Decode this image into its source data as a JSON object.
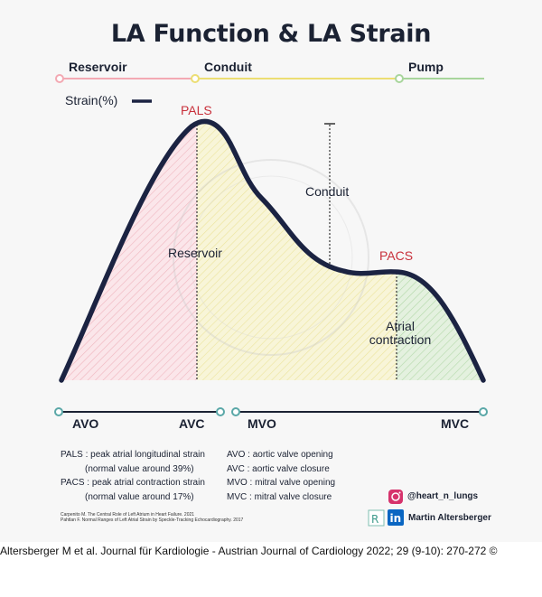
{
  "title": "LA Function & LA Strain",
  "phases": {
    "reservoir": "Reservoir",
    "conduit": "Conduit",
    "pump": "Pump"
  },
  "strain_legend": "Strain(%)",
  "labels": {
    "pals": "PALS",
    "pacs": "PACS",
    "reservoir": "Reservoir",
    "conduit": "Conduit",
    "atrial_line1": "Atrial",
    "atrial_line2": "contraction"
  },
  "timeline": {
    "avo": "AVO",
    "avc": "AVC",
    "mvo": "MVO",
    "mvc": "MVC"
  },
  "definitions_left": [
    {
      "abbr": "PALS :",
      "text": "peak atrial longitudinal strain"
    },
    {
      "abbr": "",
      "text": "(normal value around 39%)"
    },
    {
      "abbr": "PACS :",
      "text": "peak atrial contraction strain"
    },
    {
      "abbr": "",
      "text": "(normal value around 17%)"
    }
  ],
  "definitions_right": [
    {
      "abbr": "AVO :",
      "text": "aortic valve opening"
    },
    {
      "abbr": "AVC :",
      "text": "aortic valve closure"
    },
    {
      "abbr": "MVO :",
      "text": "mitral valve opening"
    },
    {
      "abbr": "MVC :",
      "text": "mitral valve closure"
    }
  ],
  "references": [
    "Carpenito M. The Central Role of Left Atrium in Heart Failure. 2021",
    "Pahtlan F. Normal Ranges of Left Atrial Strain by Speckle-Tracking Echocardiography. 2017"
  ],
  "social": {
    "instagram": "@heart_n_lungs",
    "linkedin": "Martin Altersberger"
  },
  "citation": "Altersberger M et al. Journal für Kardiologie - Austrian Journal of Cardiology 2022; 29 (9-10): 270-272 ©",
  "colors": {
    "curve": "#1b2342",
    "reservoir": "#f3a9b3",
    "conduit": "#ecde73",
    "pump": "#a8d59c",
    "red_label": "#c8303b",
    "timeline": "#5aa7a7"
  }
}
